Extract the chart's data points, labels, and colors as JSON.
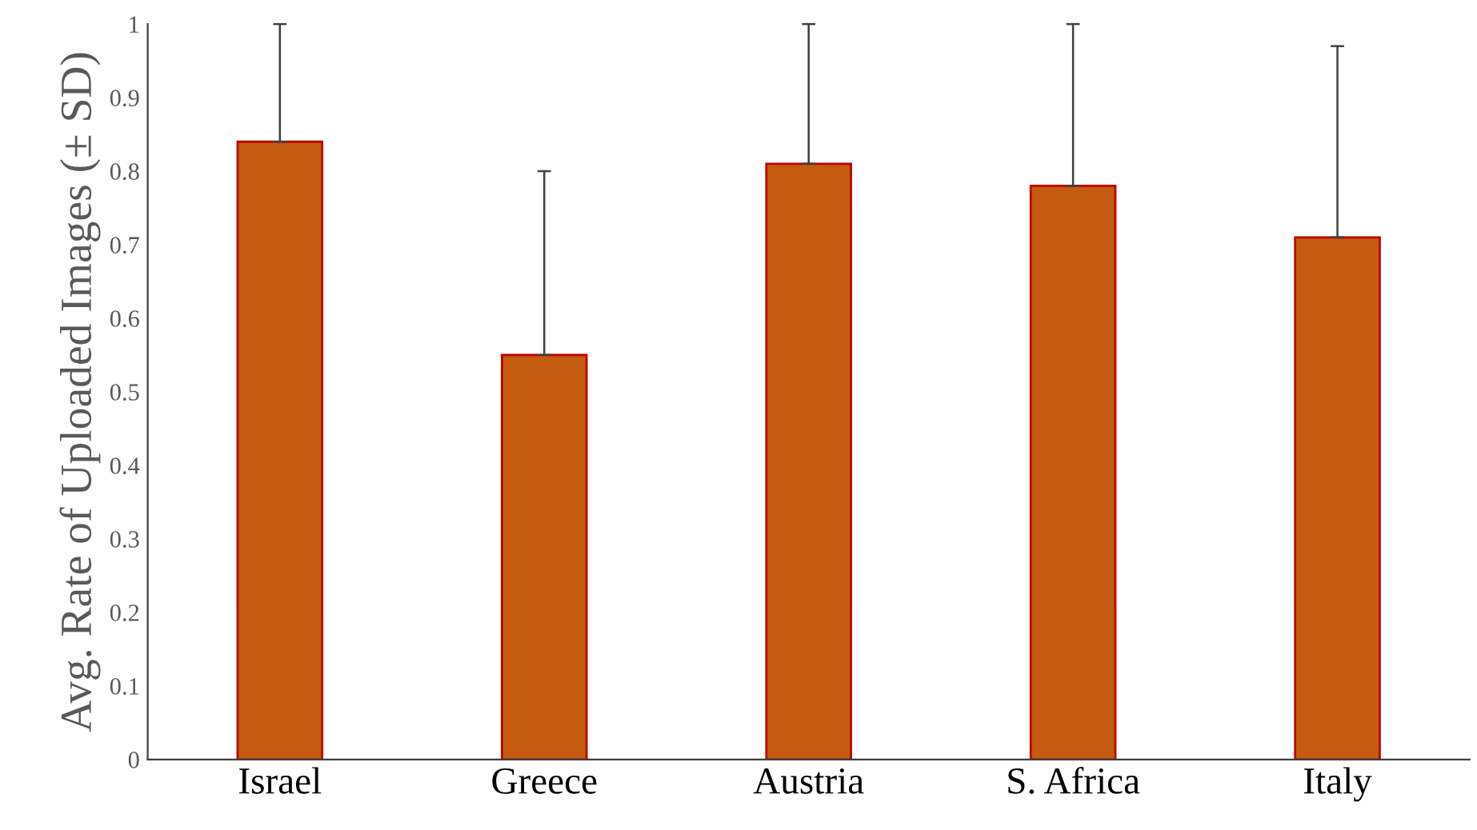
{
  "chart_data": {
    "type": "bar",
    "ylabel": "Avg. Rate of Uploaded Images (± SD)",
    "categories": [
      "Israel",
      "Greece",
      "Austria",
      "S. Africa",
      "Italy"
    ],
    "values": [
      0.84,
      0.55,
      0.81,
      0.78,
      0.71
    ],
    "errors": [
      [
        0.84,
        1
      ],
      [
        0.55,
        0.8
      ],
      [
        0.81,
        1
      ],
      [
        0.78,
        1
      ],
      [
        0.71,
        0.97
      ]
    ],
    "color": "#c55a11",
    "ylim": [
      0,
      1
    ],
    "yticks": [
      0,
      0.1,
      0.2,
      0.3,
      0.4,
      0.5,
      0.6,
      0.7,
      0.8,
      0.9,
      1
    ],
    "grid": false,
    "legend": false
  }
}
